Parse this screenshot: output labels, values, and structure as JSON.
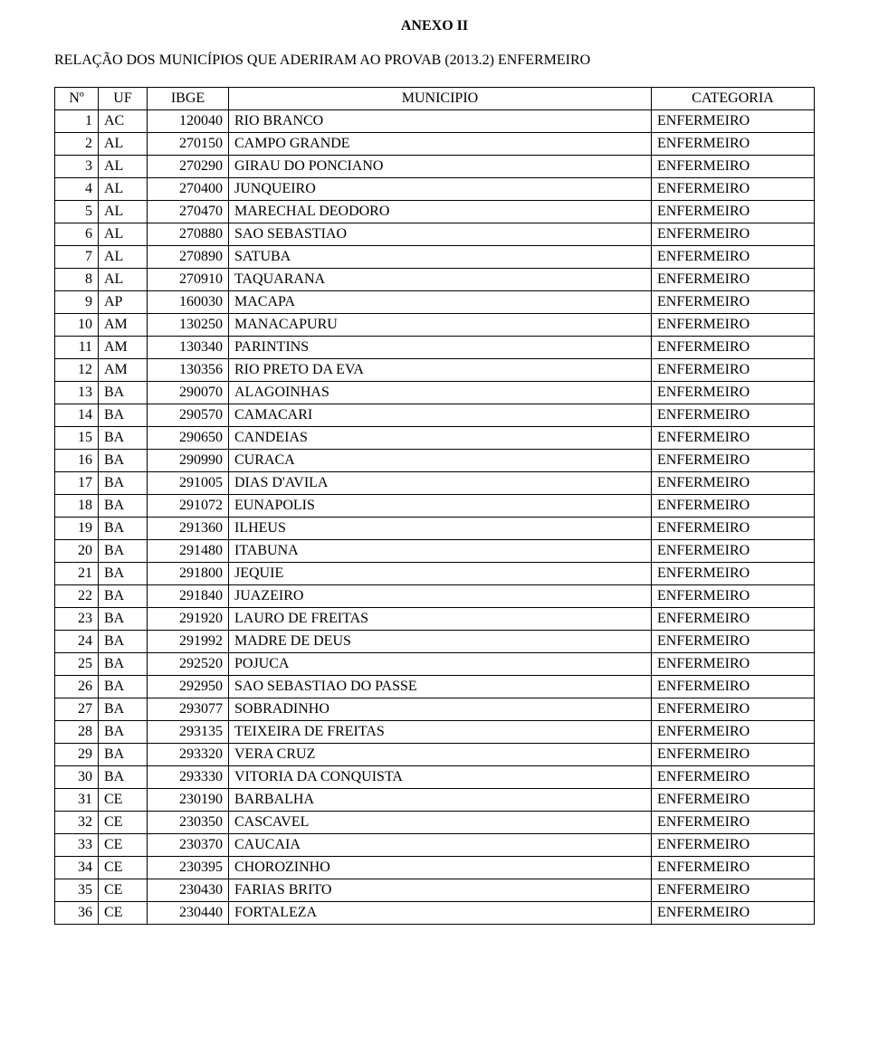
{
  "title": "ANEXO II",
  "subtitle": "RELAÇÃO DOS MUNICÍPIOS QUE ADERIRAM AO PROVAB (2013.2) ENFERMEIRO",
  "table": {
    "columns": [
      "Nº",
      "UF",
      "IBGE",
      "MUNICIPIO",
      "CATEGORIA"
    ],
    "rows": [
      [
        "1",
        "AC",
        "120040",
        "RIO BRANCO",
        "ENFERMEIRO"
      ],
      [
        "2",
        "AL",
        "270150",
        "CAMPO GRANDE",
        "ENFERMEIRO"
      ],
      [
        "3",
        "AL",
        "270290",
        "GIRAU DO PONCIANO",
        "ENFERMEIRO"
      ],
      [
        "4",
        "AL",
        "270400",
        "JUNQUEIRO",
        "ENFERMEIRO"
      ],
      [
        "5",
        "AL",
        "270470",
        "MARECHAL DEODORO",
        "ENFERMEIRO"
      ],
      [
        "6",
        "AL",
        "270880",
        "SAO SEBASTIAO",
        "ENFERMEIRO"
      ],
      [
        "7",
        "AL",
        "270890",
        "SATUBA",
        "ENFERMEIRO"
      ],
      [
        "8",
        "AL",
        "270910",
        "TAQUARANA",
        "ENFERMEIRO"
      ],
      [
        "9",
        "AP",
        "160030",
        "MACAPA",
        "ENFERMEIRO"
      ],
      [
        "10",
        "AM",
        "130250",
        "MANACAPURU",
        "ENFERMEIRO"
      ],
      [
        "11",
        "AM",
        "130340",
        "PARINTINS",
        "ENFERMEIRO"
      ],
      [
        "12",
        "AM",
        "130356",
        "RIO PRETO DA EVA",
        "ENFERMEIRO"
      ],
      [
        "13",
        "BA",
        "290070",
        "ALAGOINHAS",
        "ENFERMEIRO"
      ],
      [
        "14",
        "BA",
        "290570",
        "CAMACARI",
        "ENFERMEIRO"
      ],
      [
        "15",
        "BA",
        "290650",
        "CANDEIAS",
        "ENFERMEIRO"
      ],
      [
        "16",
        "BA",
        "290990",
        "CURACA",
        "ENFERMEIRO"
      ],
      [
        "17",
        "BA",
        "291005",
        "DIAS D'AVILA",
        "ENFERMEIRO"
      ],
      [
        "18",
        "BA",
        "291072",
        "EUNAPOLIS",
        "ENFERMEIRO"
      ],
      [
        "19",
        "BA",
        "291360",
        "ILHEUS",
        "ENFERMEIRO"
      ],
      [
        "20",
        "BA",
        "291480",
        "ITABUNA",
        "ENFERMEIRO"
      ],
      [
        "21",
        "BA",
        "291800",
        "JEQUIE",
        "ENFERMEIRO"
      ],
      [
        "22",
        "BA",
        "291840",
        "JUAZEIRO",
        "ENFERMEIRO"
      ],
      [
        "23",
        "BA",
        "291920",
        "LAURO DE FREITAS",
        "ENFERMEIRO"
      ],
      [
        "24",
        "BA",
        "291992",
        "MADRE DE DEUS",
        "ENFERMEIRO"
      ],
      [
        "25",
        "BA",
        "292520",
        "POJUCA",
        "ENFERMEIRO"
      ],
      [
        "26",
        "BA",
        "292950",
        "SAO SEBASTIAO DO PASSE",
        "ENFERMEIRO"
      ],
      [
        "27",
        "BA",
        "293077",
        "SOBRADINHO",
        "ENFERMEIRO"
      ],
      [
        "28",
        "BA",
        "293135",
        "TEIXEIRA DE FREITAS",
        "ENFERMEIRO"
      ],
      [
        "29",
        "BA",
        "293320",
        "VERA CRUZ",
        "ENFERMEIRO"
      ],
      [
        "30",
        "BA",
        "293330",
        "VITORIA DA CONQUISTA",
        "ENFERMEIRO"
      ],
      [
        "31",
        "CE",
        "230190",
        "BARBALHA",
        "ENFERMEIRO"
      ],
      [
        "32",
        "CE",
        "230350",
        "CASCAVEL",
        "ENFERMEIRO"
      ],
      [
        "33",
        "CE",
        "230370",
        "CAUCAIA",
        "ENFERMEIRO"
      ],
      [
        "34",
        "CE",
        "230395",
        "CHOROZINHO",
        "ENFERMEIRO"
      ],
      [
        "35",
        "CE",
        "230430",
        "FARIAS BRITO",
        "ENFERMEIRO"
      ],
      [
        "36",
        "CE",
        "230440",
        "FORTALEZA",
        "ENFERMEIRO"
      ]
    ]
  }
}
